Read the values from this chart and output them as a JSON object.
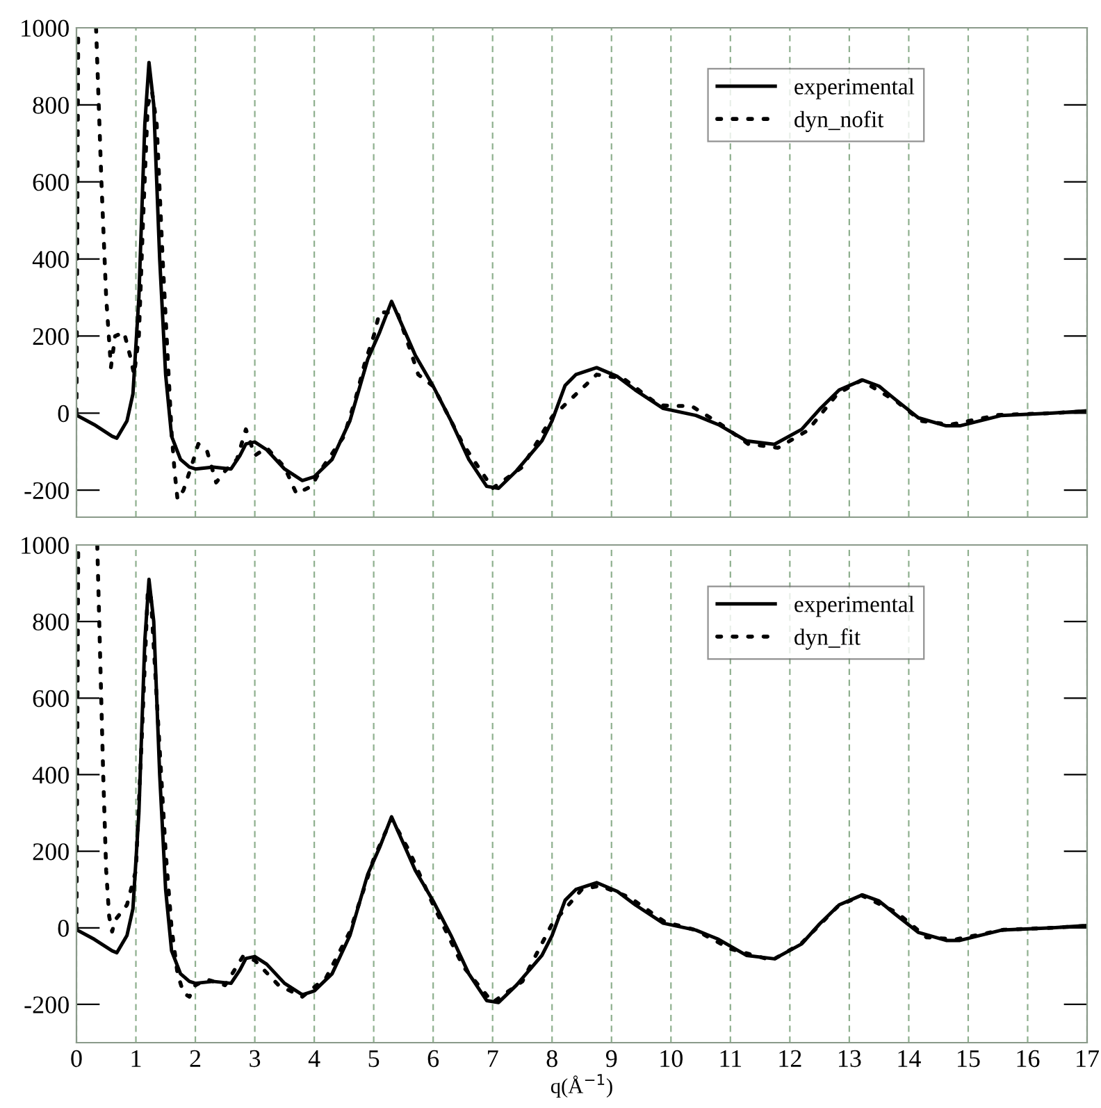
{
  "chart_data": [
    {
      "type": "line",
      "xlim": [
        0,
        17
      ],
      "xticks": [
        0,
        1,
        2,
        3,
        4,
        5,
        6,
        7,
        8,
        9,
        10,
        11,
        12,
        13,
        14,
        15,
        16,
        17
      ],
      "ylim": [
        -270,
        1000
      ],
      "yticks": [
        -200,
        0,
        200,
        400,
        600,
        800,
        1000
      ],
      "grid": "x",
      "legend": "top right",
      "tick_labels": "y",
      "x": [
        0,
        0.3,
        0.6,
        0.68,
        0.85,
        0.95,
        1.05,
        1.15,
        1.22,
        1.3,
        1.4,
        1.5,
        1.6,
        1.75,
        1.9,
        2.0,
        2.3,
        2.6,
        2.75,
        2.85,
        3.0,
        3.2,
        3.5,
        3.8,
        4.0,
        4.3,
        4.6,
        4.9,
        5.1,
        5.3,
        5.5,
        5.7,
        6.0,
        6.3,
        6.6,
        6.9,
        7.1,
        7.4,
        7.83,
        8.0,
        8.22,
        8.4,
        8.75,
        9.1,
        9.4,
        9.87,
        10.42,
        10.8,
        11.27,
        11.74,
        12.2,
        12.5,
        12.83,
        13.22,
        13.5,
        13.77,
        14.16,
        14.63,
        14.86,
        15.56,
        16.42,
        17
      ],
      "series": [
        {
          "name": "experimental",
          "color": "#000000",
          "line_style": "solid",
          "values": [
            -5,
            -30,
            -60,
            -65,
            -20,
            50,
            300,
            750,
            910,
            800,
            400,
            100,
            -60,
            -120,
            -140,
            -145,
            -140,
            -145,
            -110,
            -80,
            -75,
            -95,
            -145,
            -175,
            -165,
            -120,
            -20,
            140,
            210,
            290,
            220,
            150,
            70,
            -20,
            -120,
            -190,
            -195,
            -150,
            -72,
            -20,
            72,
            100,
            118,
            95,
            60,
            12,
            -6,
            -30,
            -72,
            -81,
            -42,
            10,
            60,
            86,
            70,
            36,
            -12,
            -33,
            -33,
            -6,
            0,
            6
          ]
        },
        {
          "name": "dyn_nofit",
          "color": "#000000",
          "line_style": "dotted",
          "x": [
            0,
            0.03,
            0.15,
            0.33,
            0.42,
            0.5,
            0.58,
            0.65,
            0.8,
            0.9,
            0.97,
            1.05,
            1.12,
            1.2,
            1.27,
            1.35,
            1.45,
            1.55,
            1.6,
            1.65,
            1.7,
            1.8,
            1.95,
            2.05,
            2.2,
            2.35,
            2.5,
            2.7,
            2.85,
            3.0,
            3.2,
            3.5,
            3.7,
            3.95,
            4.1,
            4.5,
            4.7,
            4.85,
            5.0,
            5.1,
            5.4,
            5.6,
            5.75,
            6.0,
            6.5,
            7.0,
            7.5,
            8.0,
            8.56,
            8.75,
            9.2,
            9.8,
            10.35,
            10.8,
            11.3,
            11.8,
            12.3,
            12.8,
            13.2,
            13.8,
            14.2,
            14.7,
            15.5,
            16.4,
            17
          ],
          "values": [
            0,
            1000,
            null,
            1000,
            600,
            300,
            119,
            200,
            210,
            150,
            100,
            200,
            500,
            800,
            835,
            750,
            400,
            100,
            -50,
            -150,
            -224,
            -200,
            -130,
            -80,
            -100,
            -180,
            -150,
            -120,
            -42,
            -110,
            -90,
            -140,
            -209,
            -190,
            -150,
            -60,
            40,
            130,
            200,
            262,
            260,
            170,
            100,
            70,
            -80,
            -195,
            -140,
            -10,
            72,
            100,
            90,
            20,
            18,
            -25,
            -80,
            -90,
            -45,
            50,
            85,
            30,
            -20,
            -30,
            -5,
            0,
            5
          ]
        }
      ]
    },
    {
      "type": "line",
      "xlim": [
        0,
        17
      ],
      "xticks": [
        0,
        1,
        2,
        3,
        4,
        5,
        6,
        7,
        8,
        9,
        10,
        11,
        12,
        13,
        14,
        15,
        16,
        17
      ],
      "ylim": [
        -300,
        1000
      ],
      "yticks": [
        -200,
        0,
        200,
        400,
        600,
        800,
        1000
      ],
      "grid": "x",
      "legend": "top right",
      "xlabel": "q(Å$^{−1}$)",
      "x": [
        0,
        0.3,
        0.6,
        0.68,
        0.85,
        0.95,
        1.05,
        1.15,
        1.22,
        1.3,
        1.4,
        1.5,
        1.6,
        1.75,
        1.9,
        2.0,
        2.3,
        2.6,
        2.75,
        2.85,
        3.0,
        3.2,
        3.5,
        3.8,
        4.0,
        4.3,
        4.6,
        4.9,
        5.1,
        5.3,
        5.5,
        5.7,
        6.0,
        6.3,
        6.6,
        6.9,
        7.1,
        7.4,
        7.83,
        8.0,
        8.22,
        8.4,
        8.75,
        9.1,
        9.4,
        9.87,
        10.42,
        10.8,
        11.27,
        11.74,
        12.2,
        12.5,
        12.83,
        13.22,
        13.5,
        13.77,
        14.16,
        14.63,
        14.86,
        15.56,
        16.42,
        17
      ],
      "series": [
        {
          "name": "experimental",
          "color": "#000000",
          "line_style": "solid",
          "values": [
            -5,
            -30,
            -60,
            -65,
            -20,
            50,
            300,
            750,
            910,
            800,
            400,
            100,
            -60,
            -120,
            -140,
            -145,
            -140,
            -145,
            -110,
            -80,
            -75,
            -95,
            -145,
            -175,
            -165,
            -120,
            -20,
            140,
            210,
            290,
            220,
            150,
            70,
            -20,
            -120,
            -190,
            -195,
            -150,
            -72,
            -20,
            72,
            100,
            118,
            95,
            60,
            12,
            -6,
            -30,
            -72,
            -81,
            -42,
            10,
            60,
            86,
            70,
            36,
            -12,
            -33,
            -33,
            -6,
            0,
            6
          ]
        },
        {
          "name": "dyn_fit",
          "color": "#000000",
          "line_style": "dotted",
          "x": [
            0,
            0.03,
            0.15,
            0.35,
            0.4,
            0.45,
            0.5,
            0.55,
            0.6,
            0.65,
            0.75,
            0.85,
            1.0,
            1.1,
            1.2,
            1.25,
            1.35,
            1.5,
            1.6,
            1.7,
            1.8,
            1.9,
            2.0,
            2.2,
            2.5,
            2.8,
            3.0,
            3.4,
            3.8,
            4.2,
            4.6,
            5.0,
            5.3,
            5.6,
            6.0,
            6.5,
            7.0,
            7.5,
            8.0,
            8.5,
            8.8,
            9.3,
            9.9,
            10.4,
            11.0,
            11.7,
            12.2,
            12.8,
            13.2,
            13.8,
            14.3,
            14.8,
            15.6,
            16.4,
            17
          ],
          "values": [
            0,
            1000,
            null,
            1000,
            700,
            400,
            150,
            30,
            -10,
            20,
            40,
            60,
            150,
            500,
            880,
            870,
            600,
            200,
            0,
            -120,
            -170,
            -180,
            -150,
            -135,
            -150,
            -75,
            -85,
            -150,
            -180,
            -130,
            -10,
            180,
            285,
            200,
            60,
            -100,
            -195,
            -140,
            10,
            100,
            110,
            80,
            15,
            -5,
            -55,
            -85,
            -40,
            55,
            85,
            40,
            -25,
            -30,
            -5,
            0,
            5
          ]
        }
      ]
    }
  ]
}
